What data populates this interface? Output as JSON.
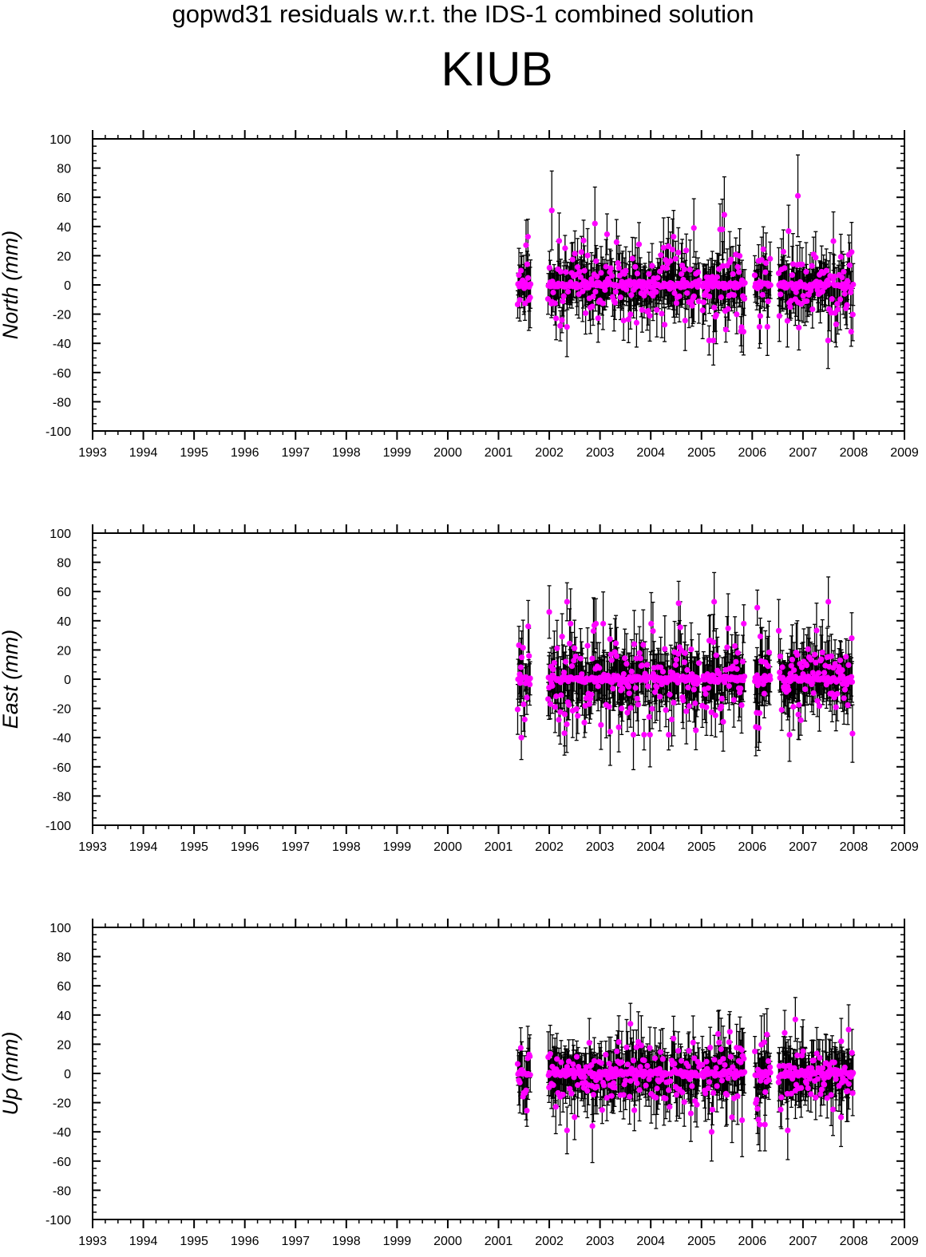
{
  "figure": {
    "suptitle": "gopwd31 residuals w.r.t. the IDS-1 combined solution",
    "station": "KIUB"
  },
  "colors": {
    "marker": "#ff00ff",
    "errorbar": "#000000",
    "axis": "#000000"
  },
  "chart_data": [
    {
      "type": "scatter",
      "ylabel": "North (mm)",
      "xlim": [
        1993,
        2009
      ],
      "ylim": [
        -100,
        100
      ],
      "x_ticks": [
        "1993",
        "1994",
        "1995",
        "1996",
        "1997",
        "1998",
        "1999",
        "2000",
        "2001",
        "2002",
        "2003",
        "2004",
        "2005",
        "2006",
        "2007",
        "2008",
        "2009"
      ],
      "y_ticks": [
        "100",
        "80",
        "60",
        "40",
        "20",
        "0",
        "-20",
        "-40",
        "-60",
        "-80",
        "-100"
      ],
      "segments": [
        [
          2001.38,
          2001.62
        ],
        [
          2001.98,
          2004.95
        ],
        [
          2005.02,
          2005.85
        ],
        [
          2006.05,
          2006.35
        ],
        [
          2006.52,
          2007.98
        ]
      ],
      "noise": {
        "sigma": 14,
        "err_mean": 14,
        "seed": 11
      },
      "highlights": [
        {
          "x": 2002.05,
          "y": 51,
          "err": 27
        },
        {
          "x": 2002.9,
          "y": 42,
          "err": 25
        },
        {
          "x": 2005.45,
          "y": 48,
          "err": 26
        },
        {
          "x": 2006.9,
          "y": 61,
          "err": 28
        },
        {
          "x": 2001.58,
          "y": 33,
          "err": 12
        },
        {
          "x": 2004.45,
          "y": 33,
          "err": 18
        },
        {
          "x": 2004.85,
          "y": 39,
          "err": 20
        },
        {
          "x": 2007.6,
          "y": 30,
          "err": 20
        },
        {
          "x": 2007.95,
          "y": -32,
          "err": 10
        },
        {
          "x": 2005.15,
          "y": -38,
          "err": 10
        }
      ]
    },
    {
      "type": "scatter",
      "ylabel": "East (mm)",
      "xlim": [
        1993,
        2009
      ],
      "ylim": [
        -100,
        100
      ],
      "x_ticks": [
        "1993",
        "1994",
        "1995",
        "1996",
        "1997",
        "1998",
        "1999",
        "2000",
        "2001",
        "2002",
        "2003",
        "2004",
        "2005",
        "2006",
        "2007",
        "2008",
        "2009"
      ],
      "y_ticks": [
        "100",
        "80",
        "60",
        "40",
        "20",
        "0",
        "-20",
        "-40",
        "-60",
        "-80",
        "-100"
      ],
      "segments": [
        [
          2001.38,
          2001.62
        ],
        [
          2001.98,
          2004.95
        ],
        [
          2005.02,
          2005.85
        ],
        [
          2006.05,
          2006.35
        ],
        [
          2006.52,
          2007.98
        ]
      ],
      "noise": {
        "sigma": 16,
        "err_mean": 16,
        "seed": 23
      },
      "highlights": [
        {
          "x": 2001.45,
          "y": -40,
          "err": 15
        },
        {
          "x": 2002.0,
          "y": 46,
          "err": 18
        },
        {
          "x": 2002.35,
          "y": 53,
          "err": 13
        },
        {
          "x": 2005.25,
          "y": 53,
          "err": 20
        },
        {
          "x": 2006.1,
          "y": 49,
          "err": 12
        },
        {
          "x": 2007.5,
          "y": 53,
          "err": 17
        },
        {
          "x": 2003.2,
          "y": -36,
          "err": 23
        },
        {
          "x": 2002.3,
          "y": -37,
          "err": 15
        },
        {
          "x": 2004.55,
          "y": 52,
          "err": 15
        }
      ]
    },
    {
      "type": "scatter",
      "ylabel": "Up (mm)",
      "xlim": [
        1993,
        2009
      ],
      "ylim": [
        -100,
        100
      ],
      "x_ticks": [
        "1993",
        "1994",
        "1995",
        "1996",
        "1997",
        "1998",
        "1999",
        "2000",
        "2001",
        "2002",
        "2003",
        "2004",
        "2005",
        "2006",
        "2007",
        "2008",
        "2009"
      ],
      "y_ticks": [
        "100",
        "80",
        "60",
        "40",
        "20",
        "0",
        "-20",
        "-40",
        "-60",
        "-80",
        "-100"
      ],
      "segments": [
        [
          2001.38,
          2001.62
        ],
        [
          2001.98,
          2004.95
        ],
        [
          2005.02,
          2005.85
        ],
        [
          2006.05,
          2006.35
        ],
        [
          2006.52,
          2007.98
        ]
      ],
      "noise": {
        "sigma": 12,
        "err_mean": 15,
        "seed": 37
      },
      "highlights": [
        {
          "x": 2002.35,
          "y": -39,
          "err": 16
        },
        {
          "x": 2002.85,
          "y": -36,
          "err": 25
        },
        {
          "x": 2003.6,
          "y": 34,
          "err": 14
        },
        {
          "x": 2005.2,
          "y": -40,
          "err": 20
        },
        {
          "x": 2005.8,
          "y": -32,
          "err": 25
        },
        {
          "x": 2006.15,
          "y": -35,
          "err": 18
        },
        {
          "x": 2006.25,
          "y": -35,
          "err": 18
        },
        {
          "x": 2006.7,
          "y": -39,
          "err": 20
        },
        {
          "x": 2006.85,
          "y": 37,
          "err": 15
        },
        {
          "x": 2007.9,
          "y": 30,
          "err": 17
        },
        {
          "x": 2007.75,
          "y": -30,
          "err": 20
        }
      ]
    }
  ]
}
